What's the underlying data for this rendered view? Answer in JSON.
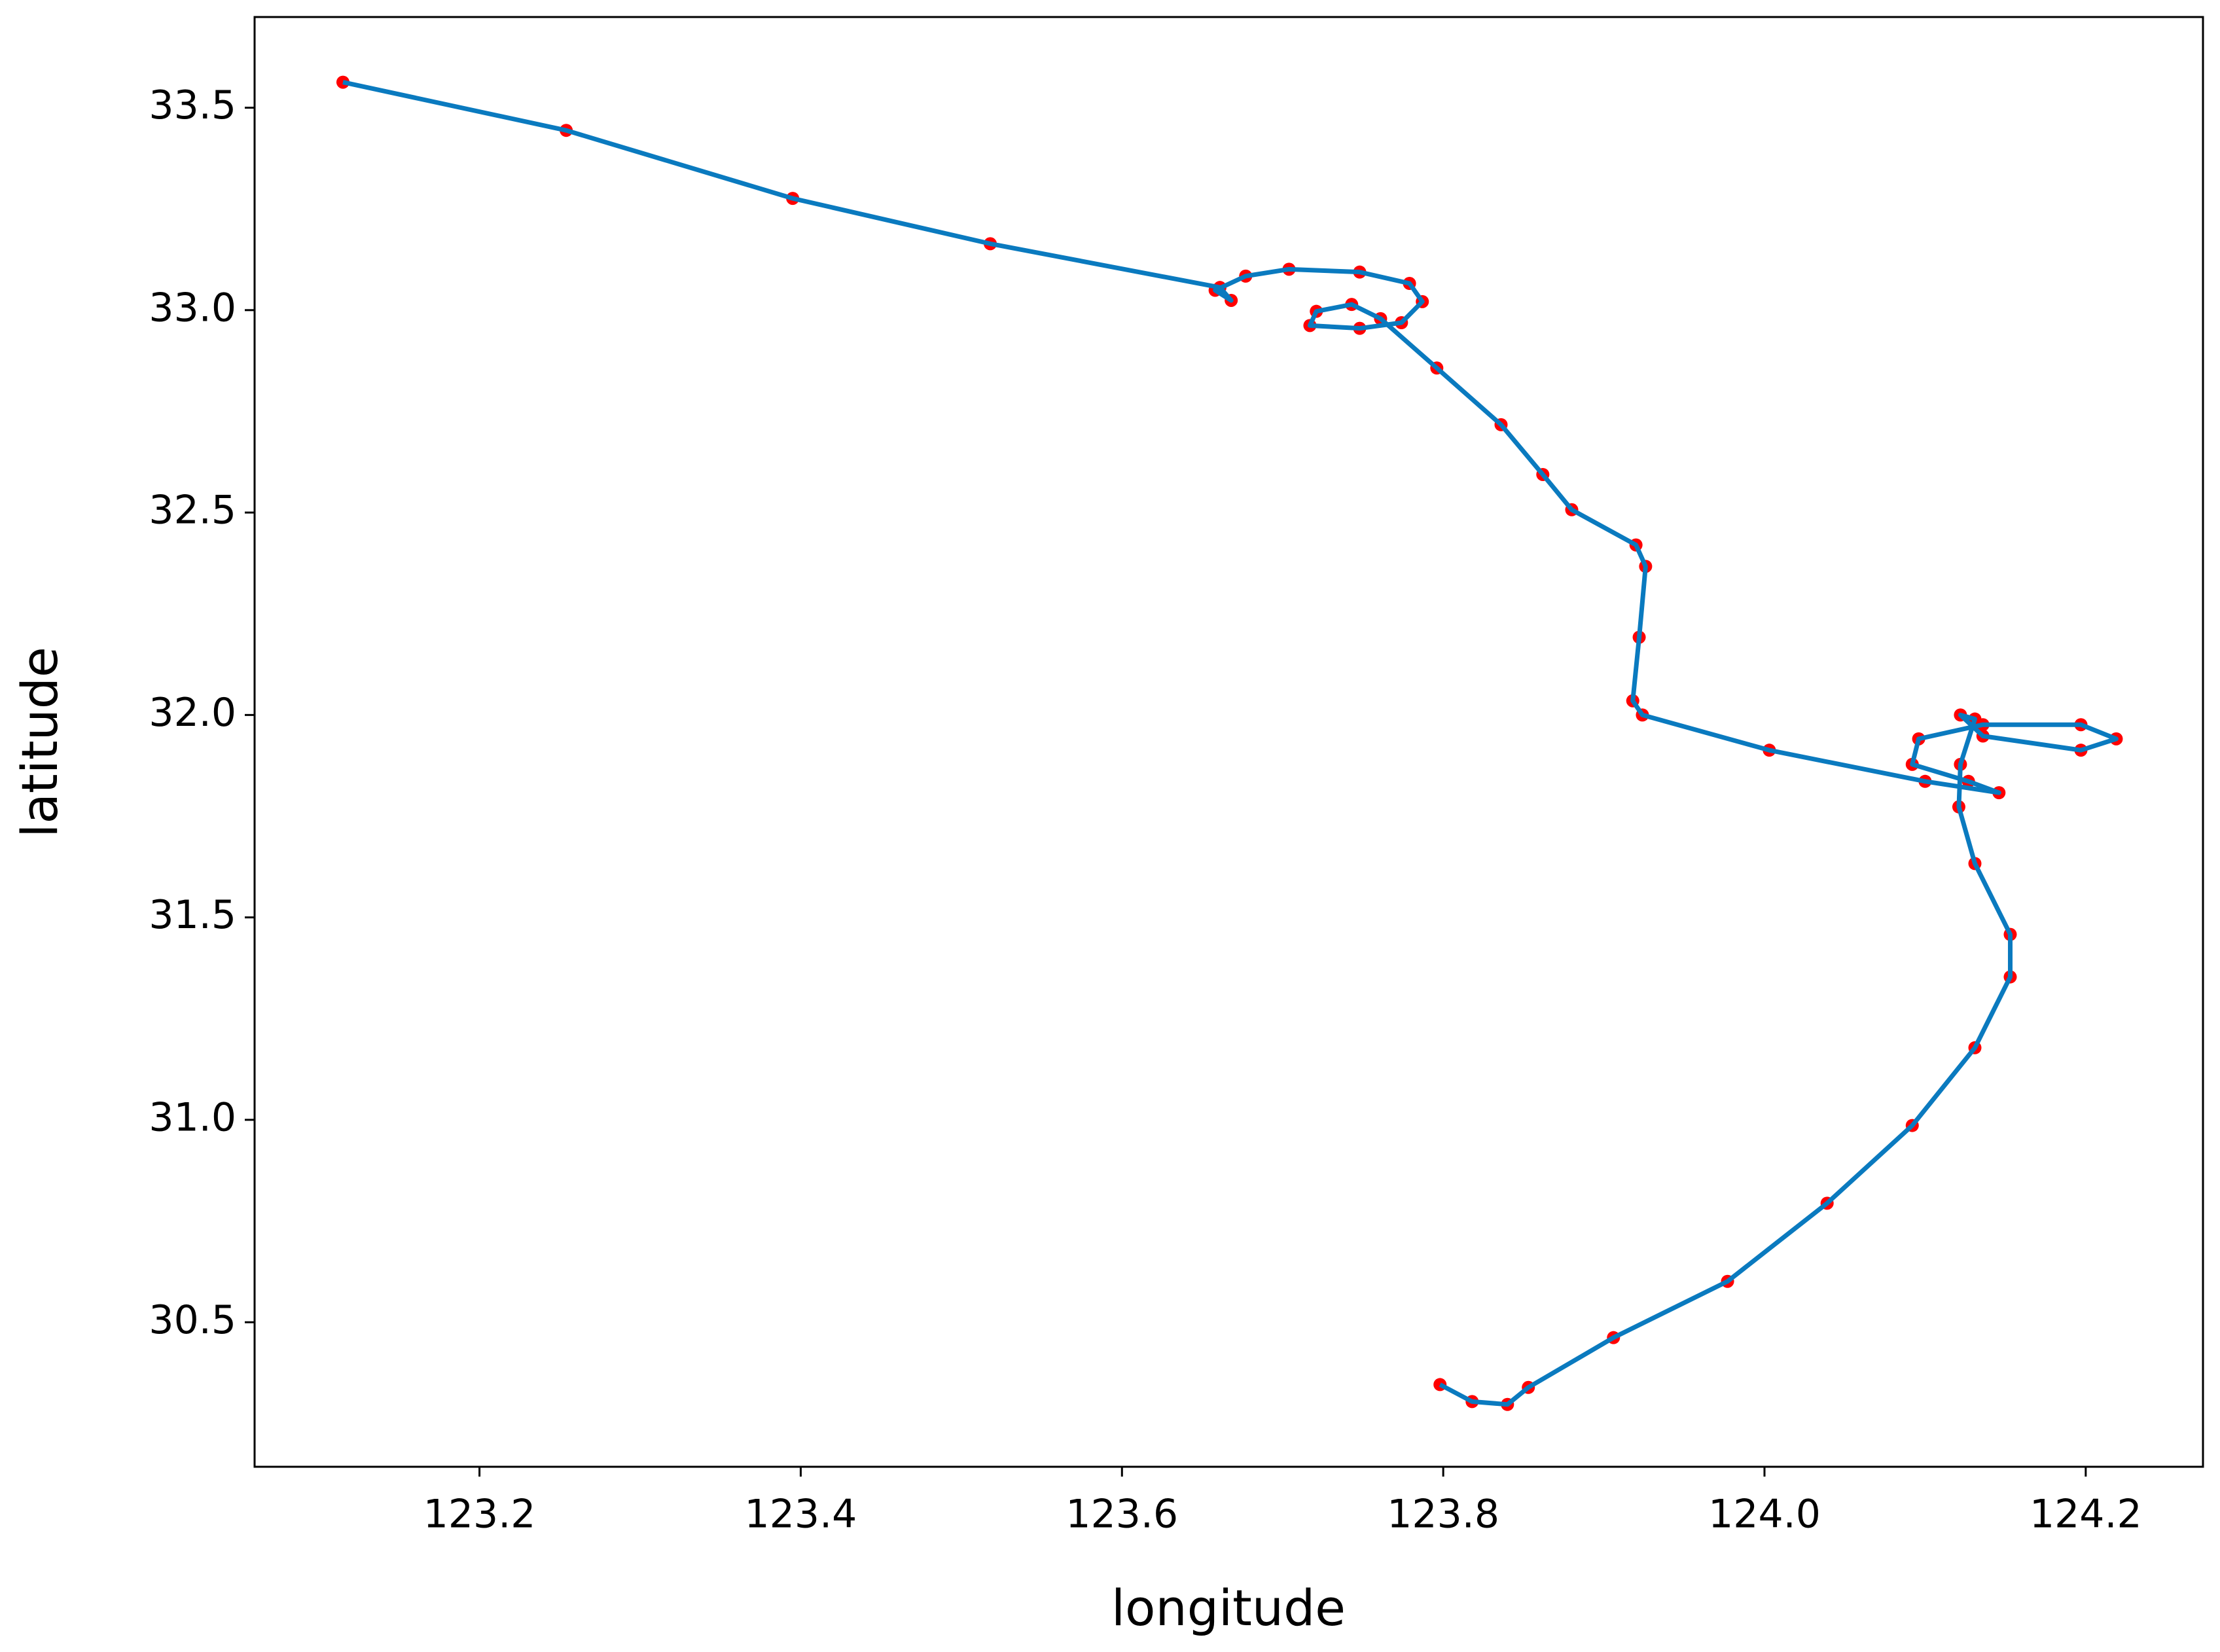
{
  "chart_data": {
    "type": "line",
    "x_label": "longitude",
    "y_label": "latitude",
    "x": [
      123.115,
      123.254,
      123.395,
      123.518,
      123.661,
      123.668,
      123.658,
      123.677,
      123.704,
      123.748,
      123.779,
      123.787,
      123.774,
      123.748,
      123.717,
      123.721,
      123.743,
      123.761,
      123.796,
      123.836,
      123.862,
      123.88,
      123.92,
      123.926,
      123.922,
      123.918,
      123.924,
      124.003,
      124.1,
      124.146,
      124.127,
      124.092,
      124.096,
      124.136,
      124.197,
      124.219,
      124.197,
      124.136,
      124.122,
      124.131,
      124.122,
      124.121,
      124.131,
      124.153,
      124.153,
      124.131,
      124.092,
      124.039,
      123.977,
      123.906,
      123.853,
      123.84,
      123.818,
      123.798
    ],
    "values": [
      33.563,
      33.444,
      33.276,
      33.164,
      33.056,
      33.024,
      33.049,
      33.084,
      33.101,
      33.094,
      33.066,
      33.021,
      32.969,
      32.955,
      32.962,
      32.997,
      33.014,
      32.979,
      32.857,
      32.717,
      32.594,
      32.507,
      32.42,
      32.367,
      32.192,
      32.035,
      32.0,
      31.913,
      31.836,
      31.808,
      31.836,
      31.878,
      31.941,
      31.976,
      31.976,
      31.941,
      31.913,
      31.948,
      32.0,
      31.99,
      31.878,
      31.773,
      31.633,
      31.458,
      31.353,
      31.178,
      30.986,
      30.794,
      30.601,
      30.462,
      30.339,
      30.297,
      30.304,
      30.346
    ],
    "color": "#0a7abf",
    "marker_color": "#ff0000",
    "xlim": [
      123.06,
      124.273
    ],
    "ylim": [
      30.143,
      33.724
    ],
    "xticks": [
      123.2,
      123.4,
      123.6,
      123.8,
      {
        "value": 124,
        "label": "124.0"
      },
      124.2
    ],
    "yticks": [
      30.5,
      {
        "value": 31,
        "label": "31.0"
      },
      31.5,
      {
        "value": 32,
        "label": "32.0"
      },
      32.5,
      {
        "value": 33,
        "label": "33.0"
      },
      33.5
    ],
    "grid": false
  }
}
